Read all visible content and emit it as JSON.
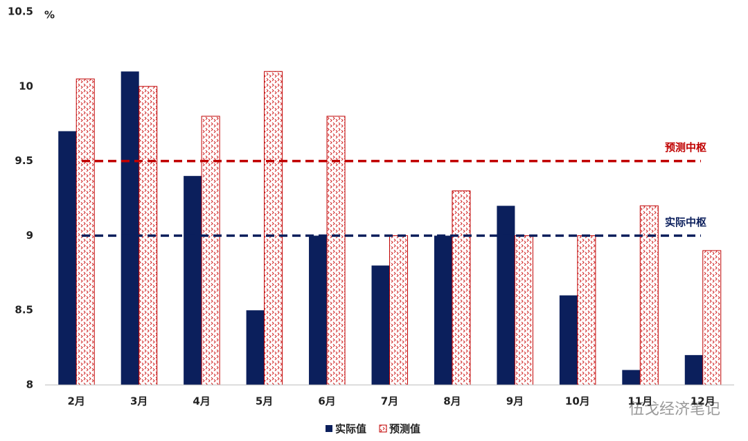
{
  "chart_data": {
    "type": "bar",
    "y_unit": "%",
    "categories": [
      "2月",
      "3月",
      "4月",
      "5月",
      "6月",
      "7月",
      "8月",
      "9月",
      "10月",
      "11月",
      "12月"
    ],
    "series": [
      {
        "name": "实际值",
        "color": "#0b1f5c",
        "pattern": "solid",
        "values": [
          9.7,
          10.1,
          9.4,
          8.5,
          9.0,
          8.8,
          9.0,
          9.2,
          8.6,
          8.1,
          8.2
        ]
      },
      {
        "name": "预测值",
        "color": "#c00000",
        "pattern": "hatched",
        "values": [
          10.05,
          10.0,
          9.8,
          10.1,
          9.8,
          9.0,
          9.3,
          9.0,
          9.0,
          9.2,
          8.9
        ]
      }
    ],
    "reference_lines": [
      {
        "name": "预测中枢",
        "value": 9.5,
        "color": "#c00000"
      },
      {
        "name": "实际中枢",
        "value": 9,
        "color": "#0b1f5c"
      }
    ],
    "ylim": [
      8,
      10.5
    ],
    "yticks": [
      8,
      8.5,
      9,
      9.5,
      10,
      10.5
    ],
    "grid": false,
    "legend": "bottom",
    "watermark": "伍戈经济笔记"
  }
}
